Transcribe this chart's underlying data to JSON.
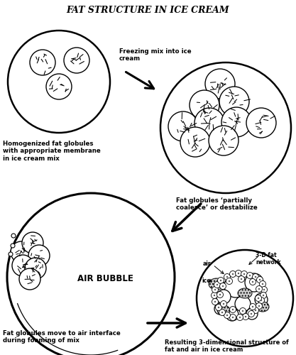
{
  "title": "FAT STRUCTURE IN ICE CREAM",
  "bg_color": "#ffffff",
  "label1": "Homogenized fat globules\nwith appropriate membrane\nin ice cream mix",
  "label2": "Freezing mix into ice\ncream",
  "label3": "Fat globules ‘partially\ncoalesce’ or destabilize",
  "label4": "AIR BUBBLE",
  "label5": "Fat globules move to air interface\nduring foaming of mix",
  "label6": "3-D fat\nnetwork",
  "label7": "air",
  "label8": "ice",
  "label9": "Resulting 3-dimensional structure of\nfat and air in ice cream",
  "figsize": [
    4.17,
    5.0
  ],
  "dpi": 100
}
